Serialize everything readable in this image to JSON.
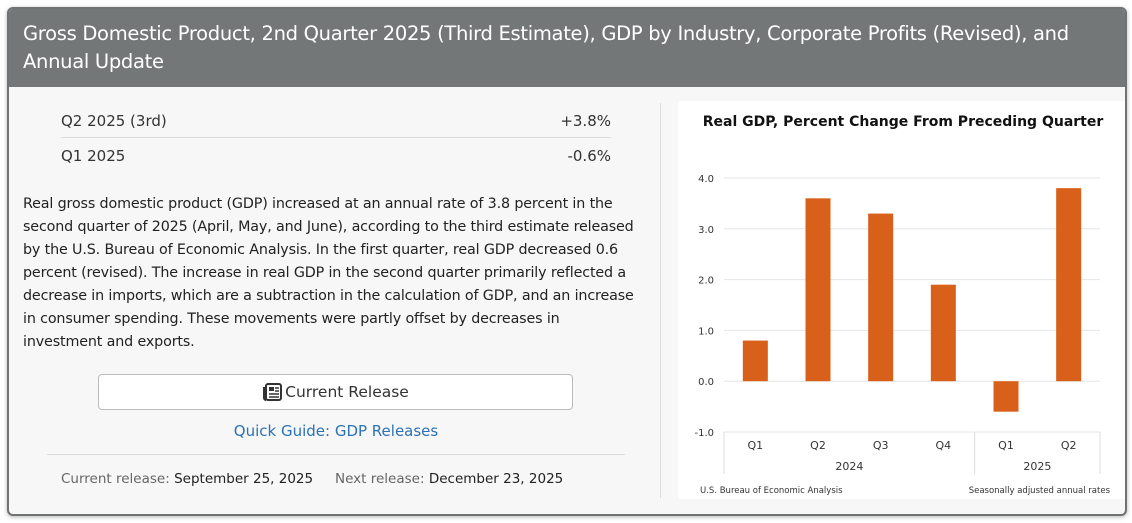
{
  "header": {
    "title": "Gross Domestic Product, 2nd Quarter 2025 (Third Estimate), GDP by Industry, Corporate Profits (Revised), and Annual Update"
  },
  "stats": [
    {
      "label": "Q2 2025 (3rd)",
      "value": "+3.8%"
    },
    {
      "label": "Q1 2025",
      "value": "-0.6%"
    }
  ],
  "description": "Real gross domestic product (GDP) increased at an annual rate of 3.8 percent in the second quarter of 2025 (April, May, and June), according to the third estimate released by the U.S. Bureau of Economic Analysis. In the first quarter, real GDP decreased 0.6 percent (revised). The increase in real GDP in the second quarter primarily reflected a decrease in imports, which are a subtraction in the calculation of GDP, and an increase in consumer spending. These movements were partly offset by decreases in investment and exports.",
  "button": {
    "label": "Current Release",
    "icon": "newspaper-icon"
  },
  "link": {
    "label": "Quick Guide: GDP Releases"
  },
  "releases": {
    "current_label": "Current release:",
    "current_date": "September 25, 2025",
    "next_label": "Next release:",
    "next_date": "December 23, 2025"
  },
  "colors": {
    "bar": "#d9601a",
    "link": "#2a72b5",
    "header": "#737778"
  },
  "chart_data": {
    "type": "bar",
    "title": "Real GDP, Percent Change From Preceding Quarter",
    "categories": [
      "Q1",
      "Q2",
      "Q3",
      "Q4",
      "Q1",
      "Q2"
    ],
    "groups": [
      {
        "label": "2024",
        "count": 4
      },
      {
        "label": "2025",
        "count": 2
      }
    ],
    "values": [
      0.8,
      3.6,
      3.3,
      1.9,
      -0.6,
      3.8
    ],
    "ylim": [
      -1.0,
      4.0
    ],
    "yticks": [
      "4.0",
      "3.0",
      "2.0",
      "1.0",
      "0.0",
      "-1.0"
    ],
    "grid": true,
    "source_note": "U.S. Bureau of Economic Analysis",
    "units_note": "Seasonally adjusted annual rates"
  }
}
